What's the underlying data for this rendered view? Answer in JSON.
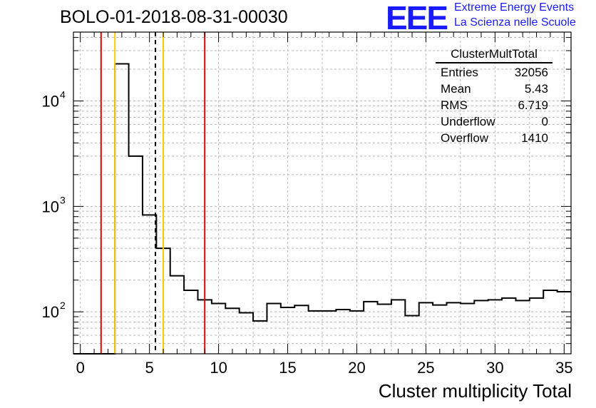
{
  "title": "BOLO-01-2018-08-31-00030",
  "logo": {
    "mark": "EEE",
    "line1": "Extreme Energy Events",
    "line2": "La Scienza nelle Scuole",
    "color": "#1a1aff"
  },
  "stats": {
    "name": "ClusterMultTotal",
    "rows": [
      {
        "label": "Entries",
        "value": "32056"
      },
      {
        "label": "Mean",
        "value": "5.43"
      },
      {
        "label": "RMS",
        "value": "6.719"
      },
      {
        "label": "Underflow",
        "value": "0"
      },
      {
        "label": "Overflow",
        "value": "1410"
      }
    ]
  },
  "chart_data": {
    "type": "bar",
    "style": "step-histogram",
    "title": "BOLO-01-2018-08-31-00030",
    "xlabel": "Cluster multiplicity Total",
    "ylabel": "",
    "xlim": [
      -0.5,
      35.5
    ],
    "ylim": [
      40,
      45000
    ],
    "log_y": true,
    "grid": true,
    "bin_width": 1,
    "x_ticks": [
      "0",
      "5",
      "10",
      "15",
      "20",
      "25",
      "30",
      "35"
    ],
    "y_ticks": [
      "10^2",
      "10^3",
      "10^4"
    ],
    "bins_x": [
      0,
      1,
      2,
      3,
      4,
      5,
      6,
      7,
      8,
      9,
      10,
      11,
      12,
      13,
      14,
      15,
      16,
      17,
      18,
      19,
      20,
      21,
      22,
      23,
      24,
      25,
      26,
      27,
      28,
      29,
      30,
      31,
      32,
      33,
      34,
      35
    ],
    "values": [
      0,
      0,
      0,
      22500,
      3000,
      830,
      400,
      220,
      160,
      130,
      120,
      108,
      98,
      82,
      120,
      110,
      115,
      102,
      102,
      105,
      102,
      125,
      118,
      130,
      92,
      122,
      116,
      122,
      120,
      128,
      130,
      135,
      128,
      135,
      160,
      155
    ],
    "vlines": [
      {
        "x": 1.5,
        "color": "#e00000",
        "style": "solid"
      },
      {
        "x": 2.5,
        "color": "#ffcc00",
        "style": "solid"
      },
      {
        "x": 5.43,
        "color": "#000000",
        "style": "dashed"
      },
      {
        "x": 6.0,
        "color": "#ffcc00",
        "style": "solid"
      },
      {
        "x": 9.0,
        "color": "#e00000",
        "style": "solid"
      }
    ]
  }
}
